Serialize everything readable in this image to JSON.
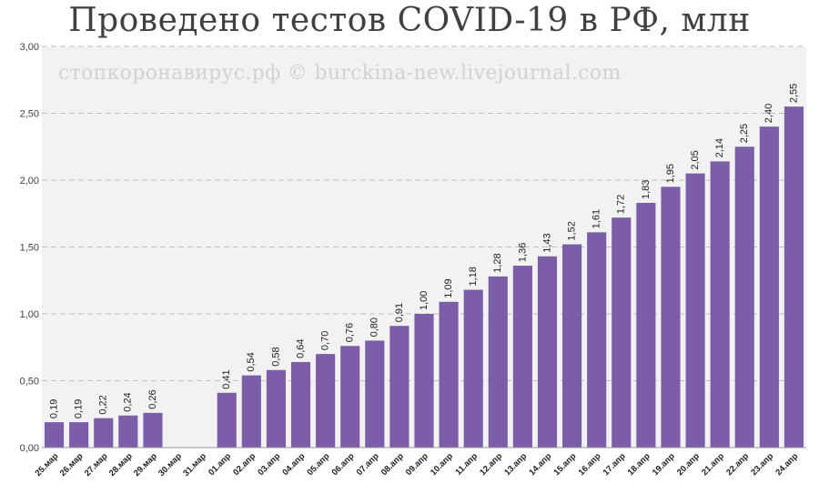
{
  "watermark": "стопкоронавирус.рф © burckina-new.livejournal.com",
  "colors": {
    "bar": "#7b5ea7",
    "plot_bg": "#f2f2f2",
    "grid": "#bfbfbf"
  },
  "chart_data": {
    "type": "bar",
    "title": "Проведено тестов COVID-19 в РФ, млн",
    "xlabel": "",
    "ylabel": "",
    "ylim": [
      0,
      3
    ],
    "yticks": [
      0,
      0.5,
      1.0,
      1.5,
      2.0,
      2.5,
      3.0
    ],
    "ytick_labels": [
      "0,00",
      "0,50",
      "1,00",
      "1,50",
      "2,00",
      "2,50",
      "3,00"
    ],
    "grid": true,
    "legend": "none",
    "categories": [
      "25.мар",
      "26.мар",
      "27.мар",
      "28.мар",
      "29.мар",
      "30.мар",
      "31.мар",
      "01.апр",
      "02.апр",
      "03.апр",
      "04.апр",
      "05.апр",
      "06.апр",
      "07.апр",
      "08.апр",
      "09.апр",
      "10.апр",
      "11.апр",
      "12.апр",
      "13.апр",
      "14.апр",
      "15.апр",
      "16.апр",
      "17.апр",
      "18.апр",
      "19.апр",
      "20.апр",
      "21.апр",
      "22.апр",
      "23.апр",
      "24.апр"
    ],
    "values": [
      0.19,
      0.19,
      0.22,
      0.24,
      0.26,
      null,
      null,
      0.41,
      0.54,
      0.58,
      0.64,
      0.7,
      0.76,
      0.8,
      0.91,
      1.0,
      1.09,
      1.18,
      1.28,
      1.36,
      1.43,
      1.52,
      1.61,
      1.72,
      1.83,
      1.95,
      2.05,
      2.14,
      2.25,
      2.4,
      2.55
    ],
    "data_labels": [
      "0,19",
      "0,19",
      "0,22",
      "0,24",
      "0,26",
      "",
      "",
      "0,41",
      "0,54",
      "0,58",
      "0,64",
      "0,70",
      "0,76",
      "0,80",
      "0,91",
      "1,00",
      "1,09",
      "1,18",
      "1,28",
      "1,36",
      "1,43",
      "1,52",
      "1,61",
      "1,72",
      "1,83",
      "1,95",
      "2,05",
      "2,14",
      "2,25",
      "2,40",
      "2,55"
    ]
  }
}
